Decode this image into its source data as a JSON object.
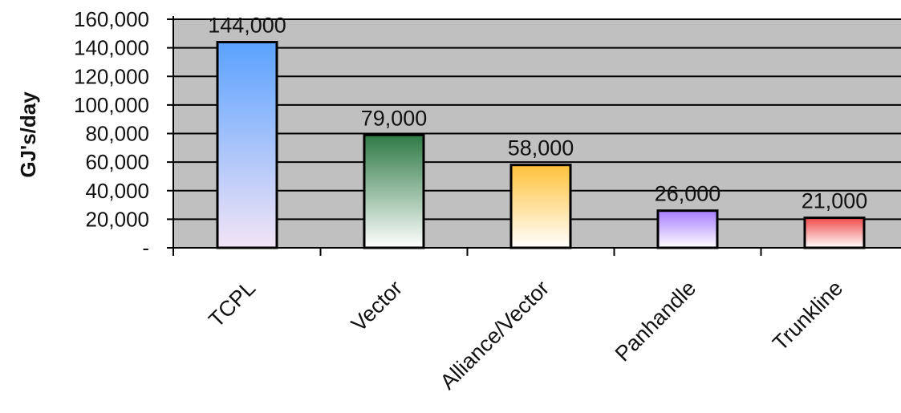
{
  "chart_data": {
    "type": "bar",
    "ylabel": "GJ's/day",
    "xlabel": "",
    "categories": [
      "TCPL",
      "Vector",
      "Alliance/Vector",
      "Panhandle",
      "Trunkline"
    ],
    "values": [
      144000,
      79000,
      58000,
      26000,
      21000
    ],
    "data_labels": [
      "144,000",
      "79,000",
      "58,000",
      "26,000",
      "21,000"
    ],
    "ylim": [
      0,
      160000
    ],
    "yticks": [
      0,
      20000,
      40000,
      60000,
      80000,
      100000,
      120000,
      140000,
      160000
    ],
    "ytick_labels": [
      "-",
      "20,000",
      "40,000",
      "60,000",
      "80,000",
      "100,000",
      "120,000",
      "140,000",
      "160,000"
    ],
    "grid": true,
    "plot_background": "#c0c0c0",
    "bar_gradients": [
      {
        "top": "#5aa2ff",
        "bottom": "#f3e4f6"
      },
      {
        "top": "#2e7a45",
        "bottom": "#ffffff"
      },
      {
        "top": "#ffc23a",
        "bottom": "#ffffff"
      },
      {
        "top": "#a77dff",
        "bottom": "#ffffff"
      },
      {
        "top": "#f04a4a",
        "bottom": "#ffffff"
      }
    ]
  }
}
